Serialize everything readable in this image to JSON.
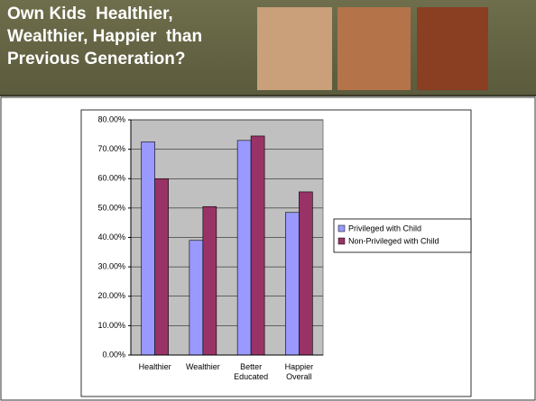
{
  "header": {
    "title_lines": [
      "Own Kids  Healthier,",
      "Wealthier, Happier  than",
      "Previous Generation?"
    ]
  },
  "chart_data": {
    "type": "bar",
    "categories": [
      "Healthier",
      "Wealthier",
      "Better Educated",
      "Happier Overall"
    ],
    "series": [
      {
        "name": "Privileged with Child",
        "color": "#9999ff",
        "values": [
          72.5,
          39,
          73,
          48.5
        ]
      },
      {
        "name": "Non-Privileged with Child",
        "color": "#993366",
        "values": [
          60,
          50.5,
          74.5,
          55.5
        ]
      }
    ],
    "ylim": [
      0,
      80
    ],
    "yticks": [
      {
        "value": 0,
        "label": "0.00%"
      },
      {
        "value": 10,
        "label": "10.00%"
      },
      {
        "value": 20,
        "label": "20.00%"
      },
      {
        "value": 30,
        "label": "30.00%"
      },
      {
        "value": 40,
        "label": "40.00%"
      },
      {
        "value": 50,
        "label": "50.00%"
      },
      {
        "value": 60,
        "label": "60.00%"
      },
      {
        "value": 70,
        "label": "70.00%"
      },
      {
        "value": 80,
        "label": "80.00%"
      }
    ],
    "grid": true,
    "plot_background": "#c0c0c0",
    "legend": "right"
  }
}
